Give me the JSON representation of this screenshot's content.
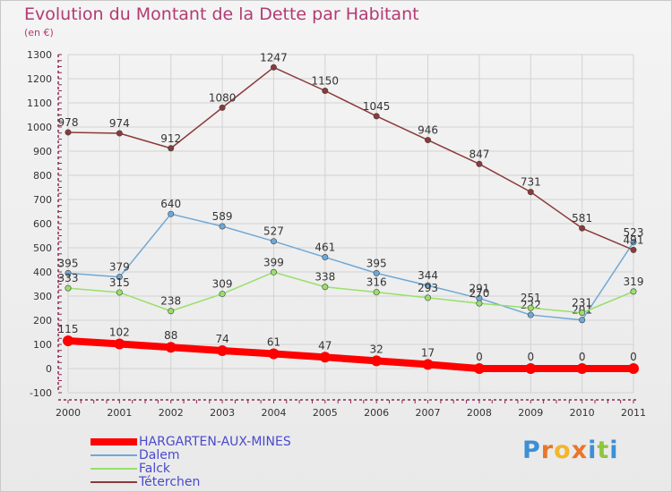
{
  "title": "Evolution du Montant de la Dette par Habitant",
  "unit": "(en €)",
  "logo": {
    "text": "Proxiti",
    "letter_colors": [
      "#3d8fd6",
      "#e8762b",
      "#f2b62a",
      "#e8762b",
      "#3d8fd6",
      "#8dc63f",
      "#3d8fd6"
    ]
  },
  "chart_data": {
    "type": "line",
    "title": "Evolution du Montant de la Dette par Habitant",
    "ylabel": "(en €)",
    "ylim": [
      -100,
      1300
    ],
    "yticks": [
      -100,
      0,
      100,
      200,
      300,
      400,
      500,
      600,
      700,
      800,
      900,
      1000,
      1100,
      1200,
      1300
    ],
    "grid": true,
    "legend_position": "bottom-left",
    "x": [
      "2000",
      "2001",
      "2002",
      "2003",
      "2004",
      "2005",
      "2006",
      "2007",
      "2008",
      "2009",
      "2010",
      "2011"
    ],
    "series": [
      {
        "name": "HARGARTEN-AUX-MINES",
        "color": "#ff0000",
        "values": [
          115,
          102,
          88,
          74,
          61,
          47,
          32,
          17,
          0,
          0,
          0,
          0
        ]
      },
      {
        "name": "Dalem",
        "color": "#6fa8d6",
        "values": [
          395,
          379,
          640,
          589,
          527,
          461,
          395,
          344,
          291,
          222,
          201,
          523
        ]
      },
      {
        "name": "Falck",
        "color": "#98e06a",
        "values": [
          333,
          315,
          238,
          309,
          399,
          338,
          316,
          293,
          270,
          251,
          231,
          319
        ]
      },
      {
        "name": "Téterchen",
        "color": "#8b3a3a",
        "values": [
          978,
          974,
          912,
          1080,
          1247,
          1150,
          1045,
          946,
          847,
          731,
          581,
          491
        ]
      }
    ]
  }
}
